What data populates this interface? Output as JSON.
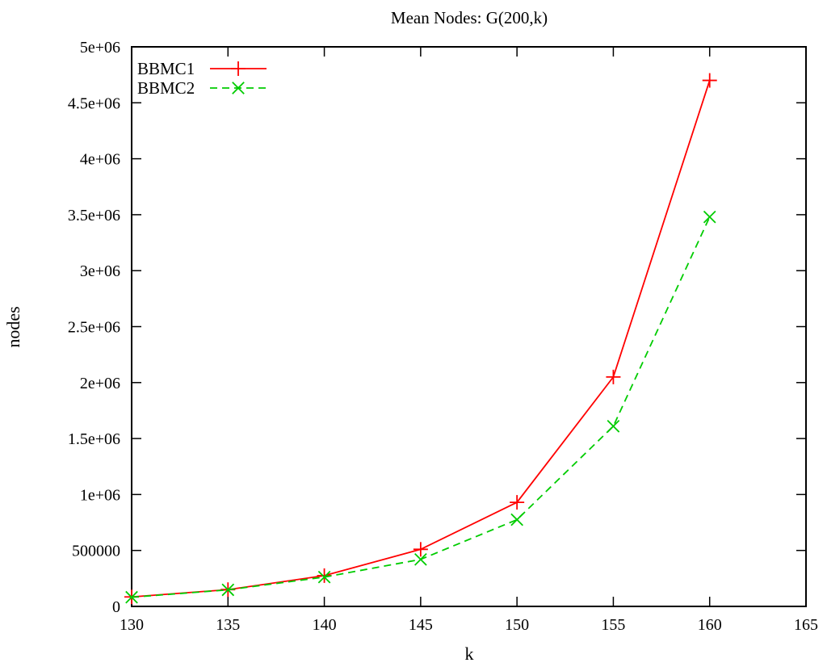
{
  "chart_data": {
    "type": "line",
    "title": "Mean Nodes: G(200,k)",
    "xlabel": "k",
    "ylabel": "nodes",
    "xlim": [
      130,
      165
    ],
    "ylim": [
      0,
      5000000
    ],
    "x_ticks": [
      130,
      135,
      140,
      145,
      150,
      155,
      160,
      165
    ],
    "x_tick_labels": [
      "130",
      "135",
      "140",
      "145",
      "150",
      "155",
      "160",
      "165"
    ],
    "y_ticks": [
      0,
      500000,
      1000000,
      1500000,
      2000000,
      2500000,
      3000000,
      3500000,
      4000000,
      4500000,
      5000000
    ],
    "y_tick_labels": [
      "0",
      "500000",
      "1e+06",
      "1.5e+06",
      "2e+06",
      "2.5e+06",
      "3e+06",
      "3.5e+06",
      "4e+06",
      "4.5e+06",
      "5e+06"
    ],
    "x": [
      130,
      135,
      140,
      145,
      150,
      155,
      160
    ],
    "series": [
      {
        "name": "BBMC1",
        "color": "#ff0000",
        "line_style": "solid",
        "marker": "plus",
        "values": [
          85000,
          150000,
          275000,
          510000,
          930000,
          2050000,
          4700000
        ]
      },
      {
        "name": "BBMC2",
        "color": "#00cc00",
        "line_style": "dashed",
        "marker": "cross",
        "values": [
          82000,
          148000,
          262000,
          420000,
          775000,
          1610000,
          3480000
        ]
      }
    ],
    "legend_position": "top-left",
    "grid": false
  }
}
